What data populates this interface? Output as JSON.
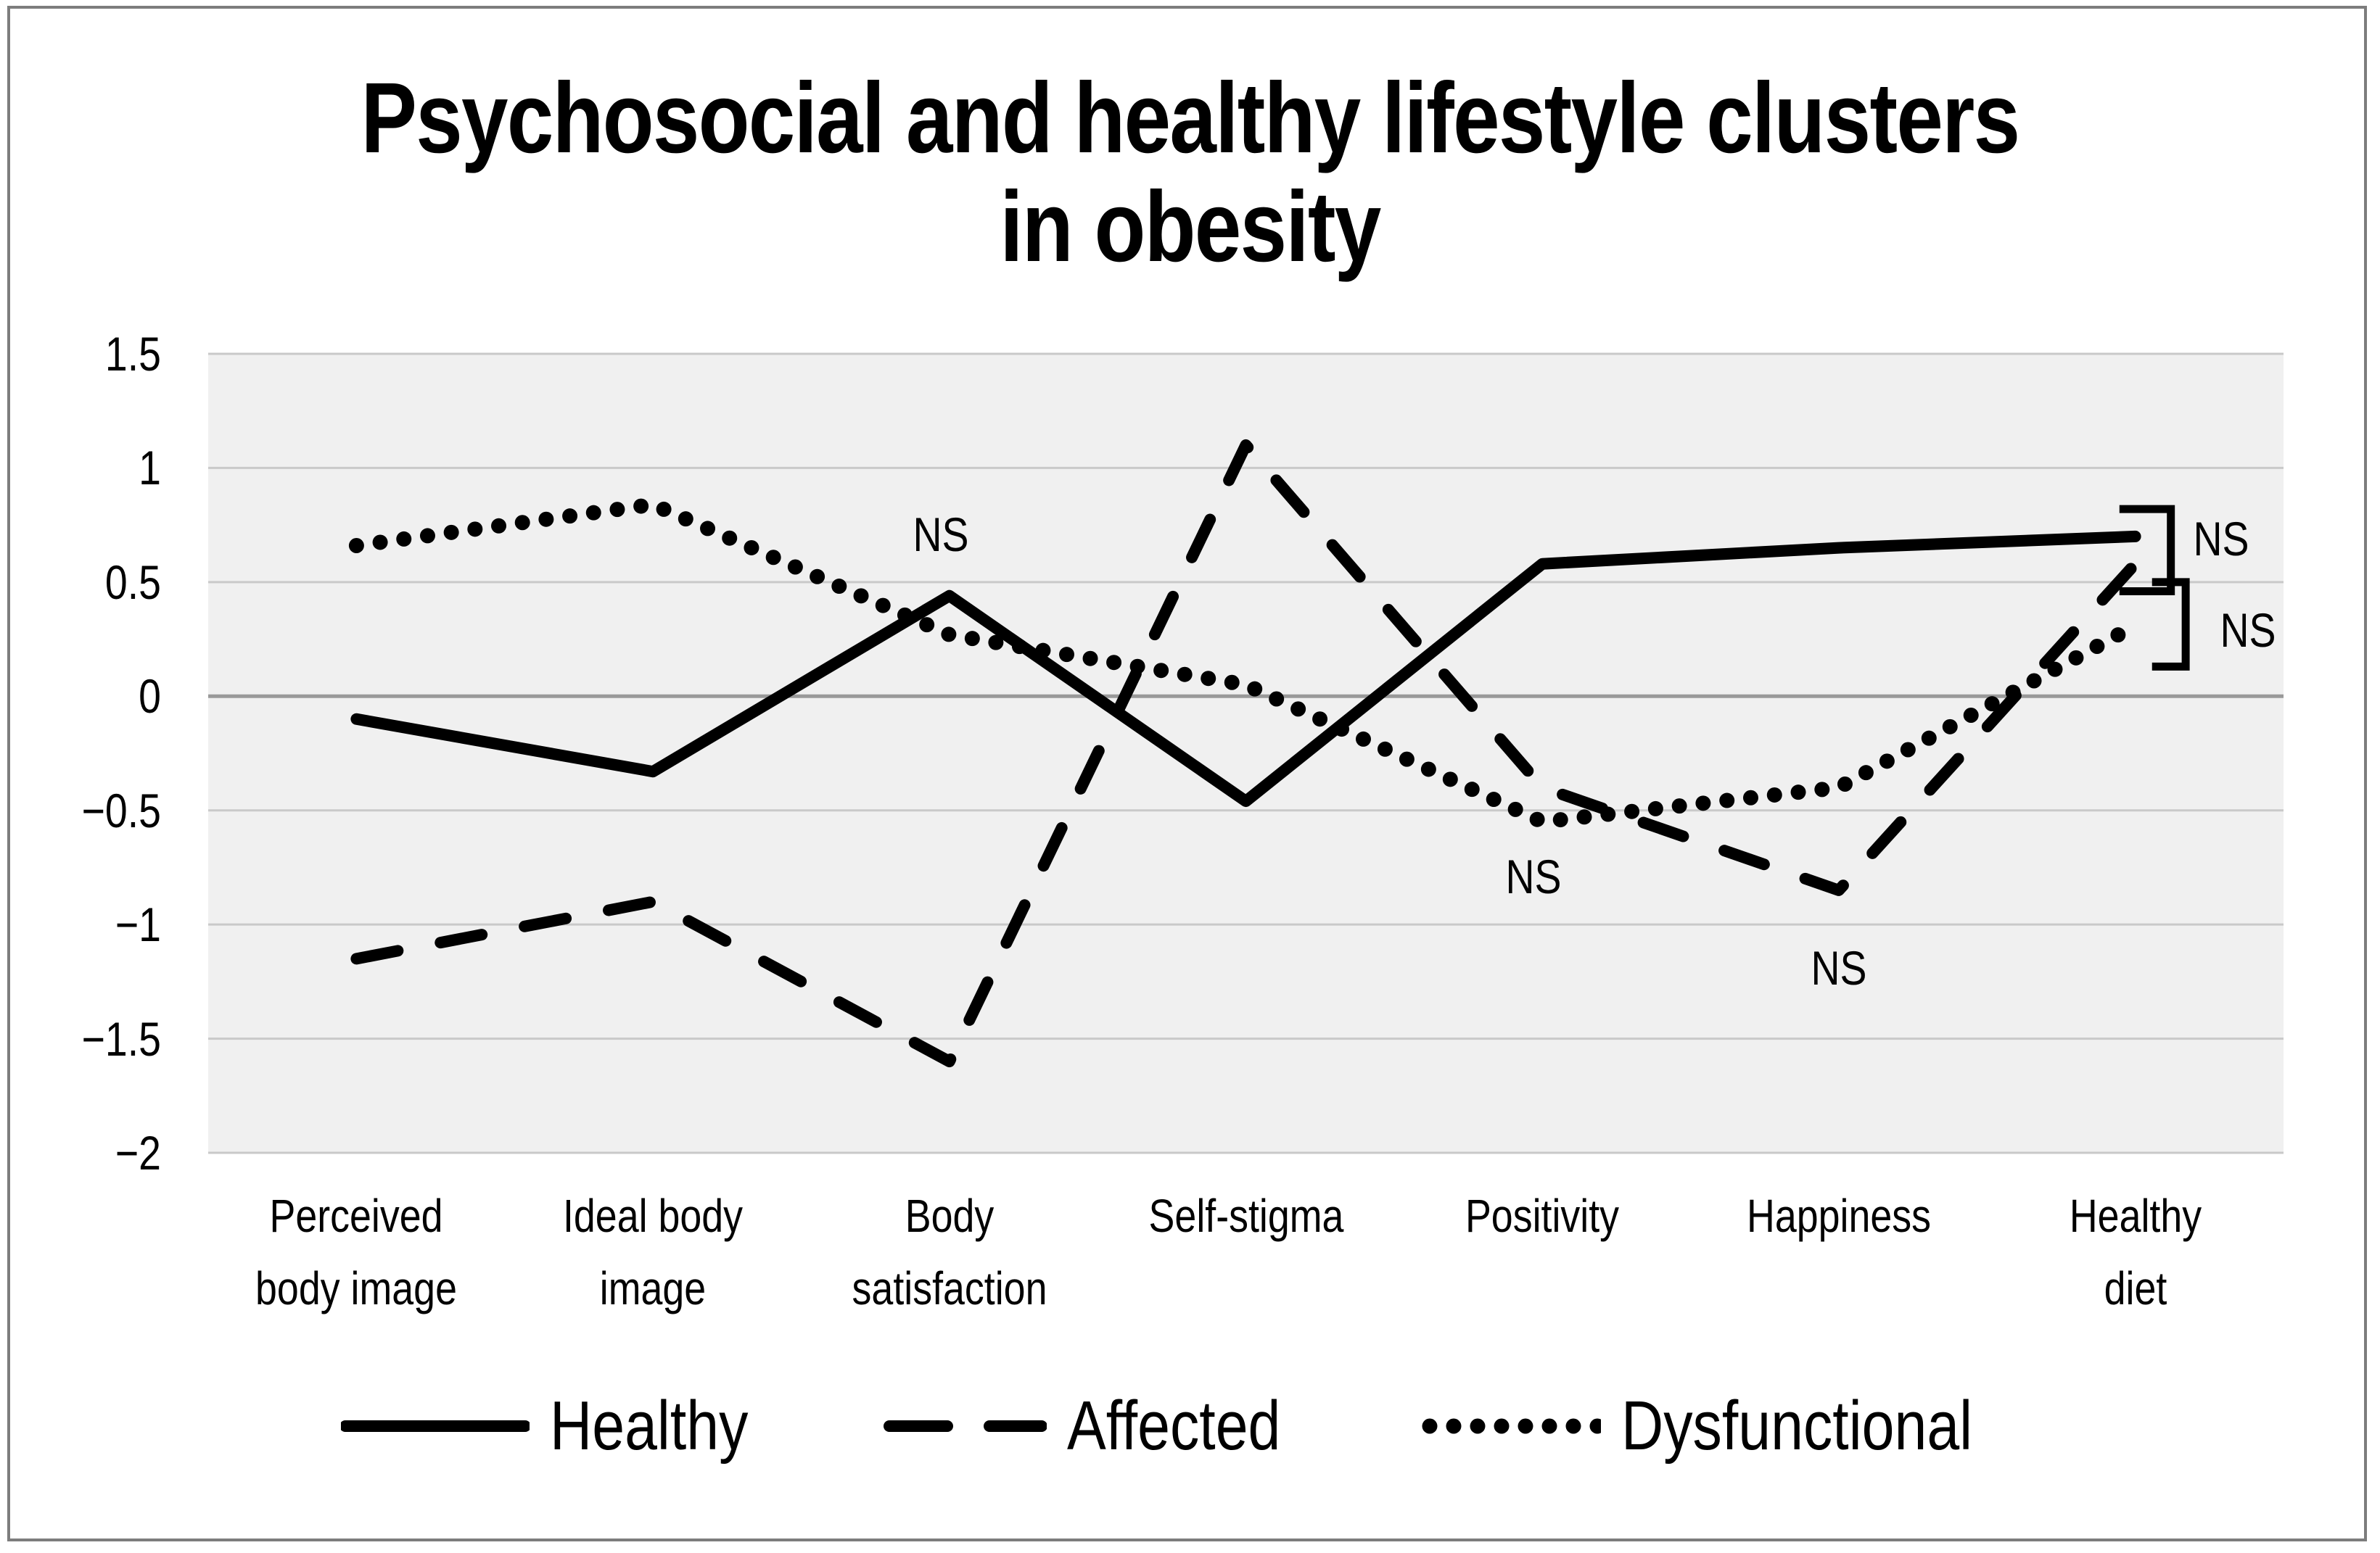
{
  "figure": {
    "title_line1": "Psychosocial and healthy lifestyle clusters",
    "title_line2": "in obesity"
  },
  "chart_data": {
    "type": "line",
    "title": "Psychosocial and healthy lifestyle clusters in obesity",
    "xlabel": "",
    "ylabel": "",
    "categories": [
      "Perceived\nbody image",
      "Ideal body\nimage",
      "Body\nsatisfaction",
      "Self-stigma",
      "Positivity",
      "Happiness",
      "Healthy\ndiet"
    ],
    "series": [
      {
        "name": "Healthy",
        "style": "solid",
        "values": [
          -0.1,
          -0.33,
          0.44,
          -0.46,
          0.58,
          0.65,
          0.7
        ]
      },
      {
        "name": "Affected",
        "style": "dashed",
        "values": [
          -1.15,
          -0.9,
          -1.6,
          1.1,
          -0.4,
          -0.85,
          0.58
        ]
      },
      {
        "name": "Dysfunctional",
        "style": "dotted",
        "values": [
          0.66,
          0.84,
          0.27,
          0.05,
          -0.55,
          -0.4,
          0.31
        ]
      }
    ],
    "y_ticks": [
      {
        "label": "1.5",
        "value": 1.5
      },
      {
        "label": "1",
        "value": 1
      },
      {
        "label": "0.5",
        "value": 0.5
      },
      {
        "label": "0",
        "value": 0
      },
      {
        "label": "−0.5",
        "value": -0.5
      },
      {
        "label": "−1",
        "value": -1
      },
      {
        "label": "−1.5",
        "value": -1.5
      },
      {
        "label": "−2",
        "value": -2
      }
    ],
    "ylim": [
      -2,
      1.5
    ],
    "grid": "horizontal",
    "legend_position": "bottom",
    "annotations": [
      {
        "text": "NS",
        "x": 1.97,
        "v": 0.71
      },
      {
        "text": "NS",
        "x": 3.97,
        "v": -0.79
      },
      {
        "text": "NS",
        "x": 5.0,
        "v": -1.19
      },
      {
        "text": "NS",
        "x": 6.29,
        "v": 0.69
      },
      {
        "text": "NS",
        "x": 6.38,
        "v": 0.29
      }
    ],
    "brackets": [
      {
        "x_line": 6.12,
        "x_stub": 5.96,
        "v_top": 0.82,
        "v_bottom": 0.46
      },
      {
        "x_line": 6.17,
        "x_stub": 6.07,
        "v_top": 0.5,
        "v_bottom": 0.13
      }
    ],
    "colors": {
      "series": "#000000",
      "grid": "#c9c9c9",
      "zero_line": "#999999",
      "plot_bg": "#f0f0f0",
      "border": "#7d7d7d"
    }
  },
  "legend": {
    "items": [
      {
        "label": "Healthy",
        "style": "solid"
      },
      {
        "label": "Affected",
        "style": "dashed"
      },
      {
        "label": "Dysfunctional",
        "style": "dotted"
      }
    ]
  }
}
